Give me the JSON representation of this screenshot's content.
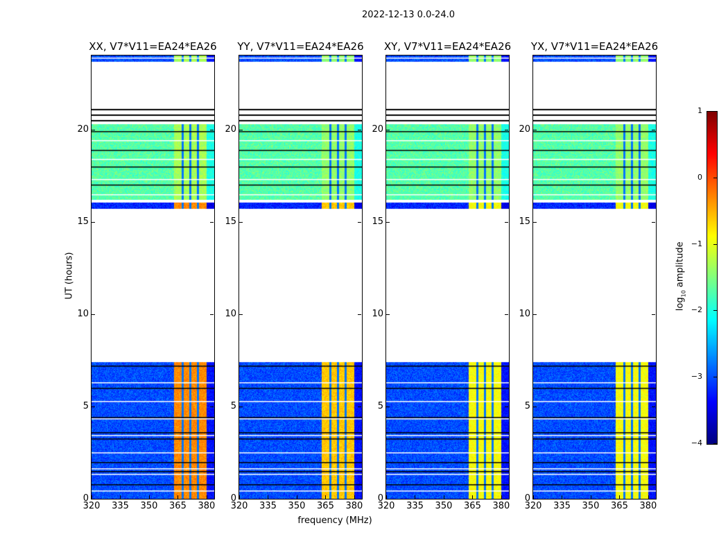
{
  "chart_data": {
    "type": "heatmap",
    "title": "2022-12-13 0.0-24.0",
    "xlabel": "frequency (MHz)",
    "ylabel": "UT (hours)",
    "xlim": [
      320,
      384
    ],
    "ylim": [
      0,
      24
    ],
    "xticks": [
      320,
      335,
      350,
      365,
      380
    ],
    "yticks": [
      0,
      5,
      10,
      15,
      20
    ],
    "colormap": "jet",
    "colorbar": {
      "label_prefix": "log",
      "label_sub": "10",
      "label_suffix": " amplitude",
      "range": [
        -4,
        1
      ],
      "ticks": [
        1,
        0,
        -1,
        -2,
        -3,
        -4
      ]
    },
    "bright_band_mhz": [
      363,
      380
    ],
    "band_gaps_mhz": [
      367.5,
      371.5,
      375.5
    ],
    "segments": [
      {
        "start": 0.0,
        "end": 7.4,
        "background": -3.0
      },
      {
        "start": 15.7,
        "end": 16.05,
        "background": -3.2
      },
      {
        "start": 16.2,
        "end": 20.3,
        "background": -1.7
      },
      {
        "start": 23.65,
        "end": 24.0,
        "background": -3.0
      }
    ],
    "flagged_lines_hours": [
      0.45,
      0.8,
      1.35,
      1.5,
      1.65,
      2.0,
      2.5,
      3.25,
      3.45,
      3.6,
      4.35,
      4.45,
      5.3,
      6.0,
      6.3,
      7.2,
      16.5,
      17.0,
      17.3,
      18.0,
      18.4,
      18.9,
      19.4,
      19.9,
      20.35,
      20.5,
      20.65,
      20.8,
      20.95,
      21.1,
      23.9
    ],
    "panels": [
      {
        "title": "XX, V7*V11=EA24*EA26",
        "band_level": -0.3,
        "late_band_level": -1.3
      },
      {
        "title": "YY, V7*V11=EA24*EA26",
        "band_level": -0.6,
        "late_band_level": -1.4
      },
      {
        "title": "XY, V7*V11=EA24*EA26",
        "band_level": -0.9,
        "late_band_level": -1.4
      },
      {
        "title": "YX, V7*V11=EA24*EA26",
        "band_level": -0.9,
        "late_band_level": -1.4
      }
    ]
  }
}
